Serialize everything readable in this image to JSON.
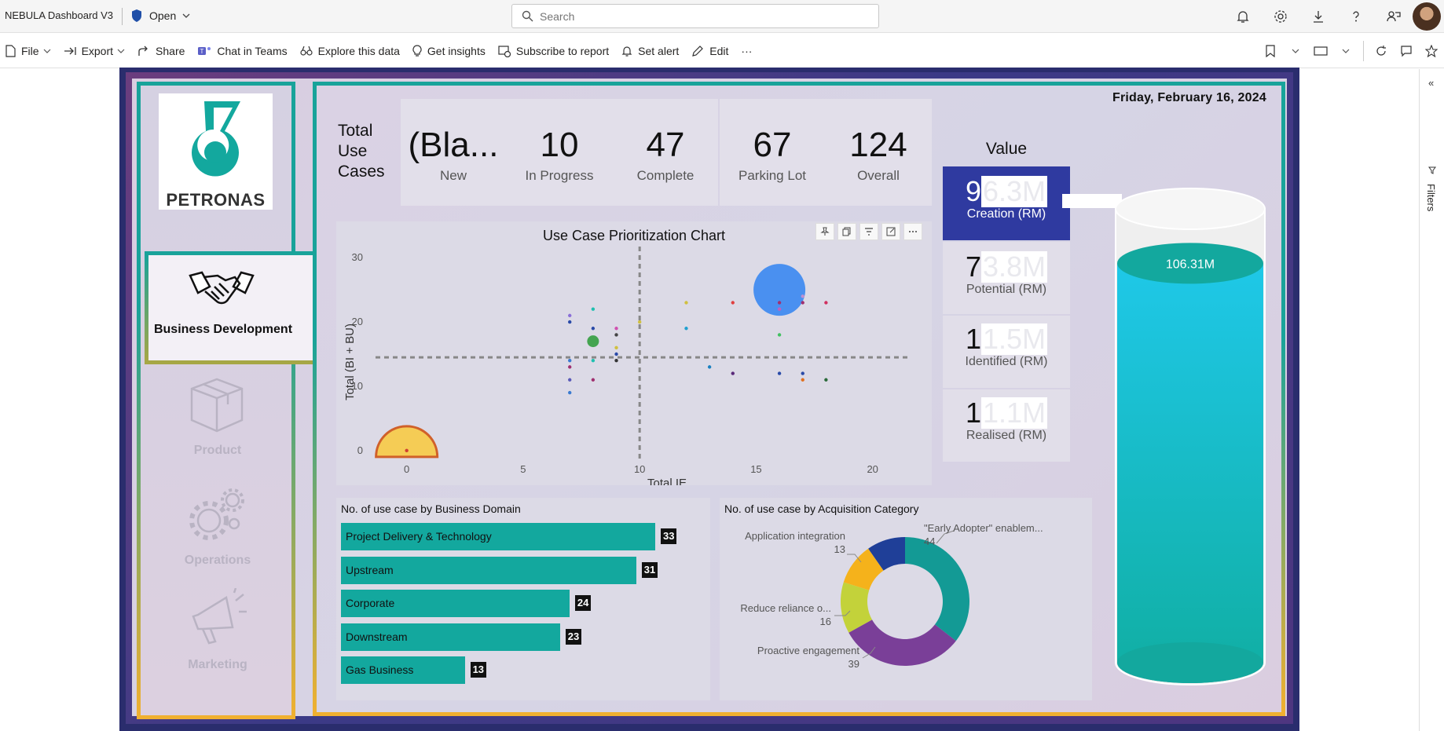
{
  "topbar": {
    "app_title": "NEBULA Dashboard V3",
    "status": "Open",
    "search_placeholder": "Search"
  },
  "commands": [
    {
      "name": "file",
      "label": "File"
    },
    {
      "name": "export",
      "label": "Export"
    },
    {
      "name": "share",
      "label": "Share"
    },
    {
      "name": "teams",
      "label": "Chat in Teams"
    },
    {
      "name": "explore",
      "label": "Explore this data"
    },
    {
      "name": "insights",
      "label": "Get insights"
    },
    {
      "name": "subscribe",
      "label": "Subscribe to report"
    },
    {
      "name": "alert",
      "label": "Set alert"
    },
    {
      "name": "edit",
      "label": "Edit"
    },
    {
      "name": "more",
      "label": "···"
    }
  ],
  "right_rail": {
    "filters_label": "Filters"
  },
  "report": {
    "date": "Friday, February 16, 2024",
    "logo_text": "PETRONAS",
    "nav": [
      {
        "label": "Business Development",
        "active": true
      },
      {
        "label": "Product"
      },
      {
        "label": "Operations"
      },
      {
        "label": "Marketing"
      }
    ],
    "total_label": "Total Use Cases",
    "kpis": [
      {
        "value": "(Bla...",
        "label": "New"
      },
      {
        "value": "10",
        "label": "In Progress"
      },
      {
        "value": "47",
        "label": "Complete"
      },
      {
        "value": "67",
        "label": "Parking Lot"
      },
      {
        "value": "124",
        "label": "Overall"
      }
    ],
    "value_header": "Value",
    "values": [
      {
        "digit": "9",
        "masked": "6.3M",
        "label": "Creation (RM)",
        "highlight": true
      },
      {
        "digit": "7",
        "masked": "3.8M",
        "label": "Potential (RM)"
      },
      {
        "digit": "1",
        "masked": "1.5M",
        "label": "Identified (RM)"
      },
      {
        "digit": "1",
        "masked": "1.1M",
        "label": "Realised (RM)"
      }
    ],
    "cylinder_value": "106.31M",
    "cylinder_fill": 0.88
  },
  "chart_data": [
    {
      "type": "scatter",
      "title": "Use Case Prioritization Chart",
      "xlabel": "Total IE",
      "ylabel": "Total (BI + BU)",
      "xlim": [
        -1,
        22
      ],
      "ylim": [
        -1,
        31
      ],
      "xticks": [
        0,
        5,
        10,
        15,
        20
      ],
      "yticks": [
        0,
        10,
        20,
        30
      ],
      "reference_lines": {
        "x": 10,
        "y": 14.5
      },
      "points": [
        {
          "x": 16,
          "y": 25,
          "size": 22,
          "color": "#4a90f0"
        },
        {
          "x": 0,
          "y": 0,
          "size": 26,
          "color": "#f5cc55",
          "half": true
        },
        {
          "x": 8,
          "y": 17,
          "size": 5,
          "color": "#44a450"
        },
        {
          "x": 7,
          "y": 21,
          "size": 1,
          "color": "#8a6fd8"
        },
        {
          "x": 7,
          "y": 20,
          "size": 1,
          "color": "#2a4aa8"
        },
        {
          "x": 8,
          "y": 22,
          "size": 1,
          "color": "#20c0b0"
        },
        {
          "x": 8,
          "y": 19,
          "size": 1,
          "color": "#2a4aa8"
        },
        {
          "x": 9,
          "y": 19,
          "size": 1,
          "color": "#d050b0"
        },
        {
          "x": 9,
          "y": 18,
          "size": 1,
          "color": "#444444"
        },
        {
          "x": 9,
          "y": 16,
          "size": 1,
          "color": "#d0c040"
        },
        {
          "x": 9,
          "y": 15,
          "size": 1,
          "color": "#2a4aa8"
        },
        {
          "x": 9,
          "y": 14,
          "size": 1,
          "color": "#333333"
        },
        {
          "x": 7,
          "y": 14,
          "size": 1,
          "color": "#3a7ad0"
        },
        {
          "x": 7,
          "y": 13,
          "size": 1,
          "color": "#a03070"
        },
        {
          "x": 7,
          "y": 11,
          "size": 1,
          "color": "#5a5ab8"
        },
        {
          "x": 8,
          "y": 14,
          "size": 1,
          "color": "#20c0b0"
        },
        {
          "x": 8,
          "y": 11,
          "size": 1,
          "color": "#a03070"
        },
        {
          "x": 7,
          "y": 9,
          "size": 1,
          "color": "#3a7ad0"
        },
        {
          "x": 10,
          "y": 20,
          "size": 1,
          "color": "#d0c040"
        },
        {
          "x": 12,
          "y": 23,
          "size": 1,
          "color": "#d0c040"
        },
        {
          "x": 12,
          "y": 19,
          "size": 1,
          "color": "#20a0d0"
        },
        {
          "x": 14,
          "y": 23,
          "size": 1,
          "color": "#e04040"
        },
        {
          "x": 16,
          "y": 23,
          "size": 1,
          "color": "#a03070"
        },
        {
          "x": 16,
          "y": 22,
          "size": 1,
          "color": "#c060c0"
        },
        {
          "x": 17,
          "y": 23,
          "size": 1,
          "color": "#a03070"
        },
        {
          "x": 17,
          "y": 24,
          "size": 1,
          "color": "#c090d0"
        },
        {
          "x": 18,
          "y": 23,
          "size": 1,
          "color": "#d03060"
        },
        {
          "x": 16,
          "y": 18,
          "size": 1,
          "color": "#40c060"
        },
        {
          "x": 13,
          "y": 13,
          "size": 1,
          "color": "#1a80c0"
        },
        {
          "x": 14,
          "y": 12,
          "size": 1,
          "color": "#5a2a7a"
        },
        {
          "x": 16,
          "y": 12,
          "size": 1,
          "color": "#2a4aa8"
        },
        {
          "x": 17,
          "y": 12,
          "size": 1,
          "color": "#2a4aa8"
        },
        {
          "x": 17,
          "y": 11,
          "size": 1,
          "color": "#e07020"
        },
        {
          "x": 18,
          "y": 11,
          "size": 1,
          "color": "#2a6a3a"
        },
        {
          "x": 0,
          "y": 0,
          "size": 1,
          "color": "#d04030"
        }
      ]
    },
    {
      "type": "bar",
      "orientation": "horizontal",
      "title": "No. of use case by Business Domain",
      "categories": [
        "Project Delivery & Technology",
        "Upstream",
        "Corporate",
        "Downstream",
        "Gas Business"
      ],
      "values": [
        33,
        31,
        24,
        23,
        13
      ],
      "color": "#13a89e"
    },
    {
      "type": "pie",
      "donut": true,
      "title": "No. of use case by Acquisition Category",
      "slices": [
        {
          "label": "\"Early Adopter\" enablem...",
          "value": 44,
          "color": "#139a95"
        },
        {
          "label": "Proactive engagement",
          "value": 39,
          "color": "#7a3f98"
        },
        {
          "label": "Reduce reliance o...",
          "value": 16,
          "color": "#c3d23a"
        },
        {
          "label": "Application integration",
          "value": 13,
          "color": "#f5b21b"
        },
        {
          "label": "",
          "value": 12,
          "color": "#1f3f98"
        }
      ]
    }
  ]
}
